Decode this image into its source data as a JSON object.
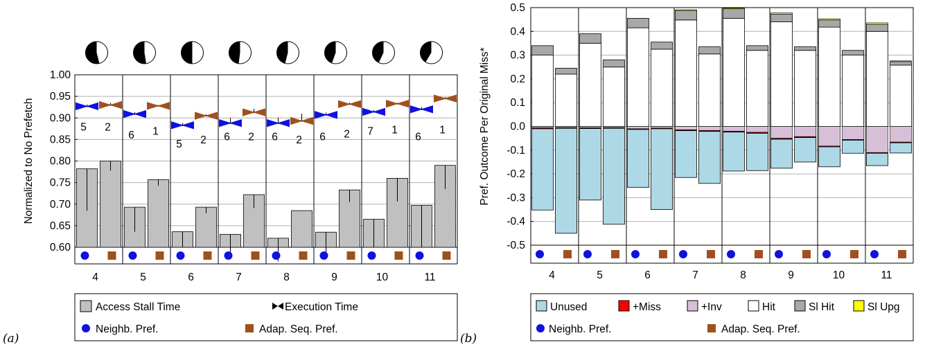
{
  "panel_labels": {
    "a": "(a)",
    "b": "(b)"
  },
  "colors": {
    "gray_bar": "#c0c0c0",
    "gray_dark": "#a8a8a8",
    "neighb": "#1010e0",
    "adap": "#a0501e",
    "unused": "#add8e6",
    "miss": "#ff0000",
    "inv": "#d8bfd8",
    "hit": "#ffffff",
    "sl_upg": "#ffff00"
  },
  "chart_data": [
    {
      "type": "bar",
      "panel": "(a)",
      "ylabel": "Normalized to No Prefetch",
      "ylim": [
        0.6,
        1.0
      ],
      "yticks": [
        "0.60",
        "0.65",
        "0.70",
        "0.75",
        "0.80",
        "0.85",
        "0.90",
        "0.95",
        "1.00"
      ],
      "categories": [
        "4",
        "5",
        "6",
        "7",
        "8",
        "9",
        "10",
        "11"
      ],
      "series": [
        {
          "name": "Neighb. Pref.",
          "access_stall": [
            0.782,
            0.693,
            0.636,
            0.63,
            0.621,
            0.635,
            0.665,
            0.697
          ],
          "stall_err_low": [
            0.685,
            0.636,
            0.6,
            0.58,
            0.567,
            0.575,
            0.6,
            0.6
          ],
          "execution": [
            0.927,
            0.909,
            0.883,
            0.888,
            0.888,
            0.907,
            0.914,
            0.92
          ],
          "exec_err_high": [
            0.931,
            0.913,
            0.888,
            0.9,
            0.901,
            0.912,
            0.918,
            0.925
          ],
          "count_label": [
            "5",
            "6",
            "5",
            "6",
            "6",
            "6",
            "7",
            "6"
          ],
          "count_pos": [
            0.879,
            0.86,
            0.839,
            0.856,
            0.856,
            0.856,
            0.869,
            0.856
          ]
        },
        {
          "name": "Adap. Seq. Pref.",
          "access_stall": [
            0.8,
            0.757,
            0.693,
            0.722,
            0.685,
            0.733,
            0.76,
            0.79
          ],
          "stall_err_low": [
            0.778,
            0.743,
            0.679,
            0.691,
            0.685,
            0.705,
            0.706,
            0.735
          ],
          "execution": [
            0.93,
            0.928,
            0.905,
            0.913,
            0.893,
            0.932,
            0.933,
            0.945
          ],
          "exec_err_high": [
            0.935,
            0.93,
            0.908,
            0.921,
            0.91,
            0.935,
            0.935,
            0.948
          ],
          "count_label": [
            "2",
            "1",
            "2",
            "2",
            "2",
            "2",
            "1",
            "1"
          ],
          "count_pos": [
            0.879,
            0.869,
            0.849,
            0.856,
            0.849,
            0.863,
            0.872,
            0.872
          ]
        }
      ],
      "pie_fraction": [
        0.58,
        0.55,
        0.5,
        0.46,
        0.42,
        0.39,
        0.36,
        0.33
      ],
      "legend": {
        "access_stall": "Access Stall Time",
        "execution": "Execution Time",
        "neighb": "Neighb. Pref.",
        "adap": "Adap. Seq. Pref."
      }
    },
    {
      "type": "bar",
      "panel": "(b)",
      "ylabel": "Pref. Outcome Per Original Miss*",
      "ylim": [
        -0.5,
        0.5
      ],
      "yticks": [
        "-0.5",
        "-0.4",
        "-0.3",
        "-0.2",
        "-0.1",
        "0.0",
        "0.1",
        "0.2",
        "0.3",
        "0.4",
        "0.5"
      ],
      "categories": [
        "4",
        "5",
        "6",
        "7",
        "8",
        "9",
        "10",
        "11"
      ],
      "groups": [
        {
          "name": "Neighb. Pref.",
          "hit": [
            0.3,
            0.35,
            0.415,
            0.448,
            0.455,
            0.44,
            0.418,
            0.4
          ],
          "sl_hit": [
            0.04,
            0.04,
            0.04,
            0.04,
            0.04,
            0.033,
            0.03,
            0.03
          ],
          "sl_upg": [
            0.0,
            0.0,
            0.0,
            0.003,
            0.003,
            0.005,
            0.005,
            0.006
          ],
          "inv": [
            -0.006,
            -0.006,
            -0.01,
            -0.014,
            -0.02,
            -0.05,
            -0.083,
            -0.11
          ],
          "miss": [
            -0.004,
            -0.003,
            -0.003,
            -0.004,
            -0.004,
            -0.004,
            -0.003,
            -0.003
          ],
          "unused_end": [
            -0.352,
            -0.31,
            -0.257,
            -0.215,
            -0.188,
            -0.176,
            -0.17,
            -0.165
          ]
        },
        {
          "name": "Adap. Seq. Pref.",
          "hit": [
            0.22,
            0.25,
            0.325,
            0.305,
            0.32,
            0.32,
            0.3,
            0.258
          ],
          "sl_hit": [
            0.025,
            0.03,
            0.03,
            0.03,
            0.02,
            0.015,
            0.02,
            0.015
          ],
          "sl_upg": [
            0.0,
            0.0,
            0.0,
            0.0,
            0.0,
            0.0,
            0.0,
            0.003
          ],
          "inv": [
            -0.005,
            -0.005,
            -0.007,
            -0.017,
            -0.025,
            -0.043,
            -0.055,
            -0.066
          ],
          "miss": [
            -0.003,
            -0.003,
            -0.003,
            -0.004,
            -0.004,
            -0.004,
            -0.003,
            -0.003
          ],
          "unused_end": [
            -0.45,
            -0.412,
            -0.35,
            -0.24,
            -0.186,
            -0.15,
            -0.113,
            -0.112
          ]
        }
      ],
      "legend": {
        "unused": "Unused",
        "miss": "+Miss",
        "inv": "+Inv",
        "hit": "Hit",
        "sl_hit": "Sl Hit",
        "sl_upg": "Sl Upg",
        "neighb": "Neighb. Pref.",
        "adap": "Adap. Seq. Pref."
      }
    }
  ]
}
